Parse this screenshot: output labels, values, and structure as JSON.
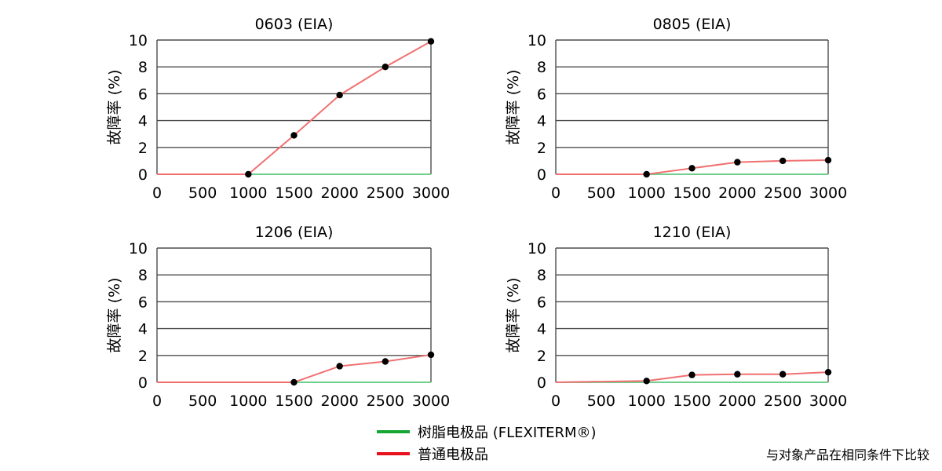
{
  "chart_data": [
    {
      "type": "line",
      "title": "0603 (EIA)",
      "ylabel": "故障率 (%)",
      "xlabel": "",
      "xlim": [
        0,
        3000
      ],
      "ylim": [
        0,
        10
      ],
      "xticks": [
        "0",
        "500",
        "1000",
        "1500",
        "2000",
        "2500",
        "3000"
      ],
      "yticks": [
        "0",
        "2",
        "4",
        "6",
        "8",
        "10"
      ],
      "grid": "horizontal",
      "series": [
        {
          "key": "resin",
          "color": "#6fcf8f",
          "x": [
            0,
            3000
          ],
          "y": [
            0,
            0
          ],
          "markers": []
        },
        {
          "key": "normal",
          "color": "#f07070",
          "x": [
            0,
            1000,
            1500,
            2000,
            2500,
            3000
          ],
          "y": [
            0,
            0,
            2.9,
            5.9,
            8.0,
            9.9
          ],
          "markers": [
            1000,
            1500,
            2000,
            2500,
            3000
          ]
        }
      ]
    },
    {
      "type": "line",
      "title": "0805 (EIA)",
      "ylabel": "故障率 (%)",
      "xlabel": "",
      "xlim": [
        0,
        3000
      ],
      "ylim": [
        0,
        10
      ],
      "xticks": [
        "0",
        "500",
        "1000",
        "1500",
        "2000",
        "2500",
        "3000"
      ],
      "yticks": [
        "0",
        "2",
        "4",
        "6",
        "8",
        "10"
      ],
      "grid": "horizontal",
      "series": [
        {
          "key": "resin",
          "color": "#6fcf8f",
          "x": [
            0,
            3000
          ],
          "y": [
            0,
            0
          ],
          "markers": []
        },
        {
          "key": "normal",
          "color": "#f07070",
          "x": [
            0,
            1000,
            1500,
            2000,
            2500,
            3000
          ],
          "y": [
            0,
            0,
            0.45,
            0.9,
            1.0,
            1.05
          ],
          "markers": [
            1000,
            1500,
            2000,
            2500,
            3000
          ]
        }
      ]
    },
    {
      "type": "line",
      "title": "1206 (EIA)",
      "ylabel": "故障率 (%)",
      "xlabel": "",
      "xlim": [
        0,
        3000
      ],
      "ylim": [
        0,
        10
      ],
      "xticks": [
        "0",
        "500",
        "1000",
        "1500",
        "2000",
        "2500",
        "3000"
      ],
      "yticks": [
        "0",
        "2",
        "4",
        "6",
        "8",
        "10"
      ],
      "grid": "horizontal",
      "series": [
        {
          "key": "resin",
          "color": "#6fcf8f",
          "x": [
            0,
            3000
          ],
          "y": [
            0,
            0
          ],
          "markers": []
        },
        {
          "key": "normal",
          "color": "#f07070",
          "x": [
            0,
            1500,
            2000,
            2500,
            3000
          ],
          "y": [
            0,
            0,
            1.2,
            1.55,
            2.05
          ],
          "markers": [
            1500,
            2000,
            2500,
            3000
          ]
        }
      ]
    },
    {
      "type": "line",
      "title": "1210 (EIA)",
      "ylabel": "故障率 (%)",
      "xlabel": "",
      "xlim": [
        0,
        3000
      ],
      "ylim": [
        0,
        10
      ],
      "xticks": [
        "0",
        "500",
        "1000",
        "1500",
        "2000",
        "2500",
        "3000"
      ],
      "yticks": [
        "0",
        "2",
        "4",
        "6",
        "8",
        "10"
      ],
      "grid": "horizontal",
      "series": [
        {
          "key": "resin",
          "color": "#6fcf8f",
          "x": [
            0,
            3000
          ],
          "y": [
            0,
            0
          ],
          "markers": []
        },
        {
          "key": "normal",
          "color": "#f07070",
          "x": [
            0,
            1000,
            1500,
            2000,
            2500,
            3000
          ],
          "y": [
            0,
            0.1,
            0.55,
            0.6,
            0.6,
            0.75
          ],
          "markers": [
            1000,
            1500,
            2000,
            2500,
            3000
          ]
        }
      ]
    }
  ],
  "legend": {
    "items": [
      {
        "label": "树脂电极品 (FLEXITERM®)",
        "color": "#16a633"
      },
      {
        "label": "普通电极品",
        "color": "#e8101a"
      }
    ]
  },
  "footnote": "与对象产品在相同条件下比较"
}
